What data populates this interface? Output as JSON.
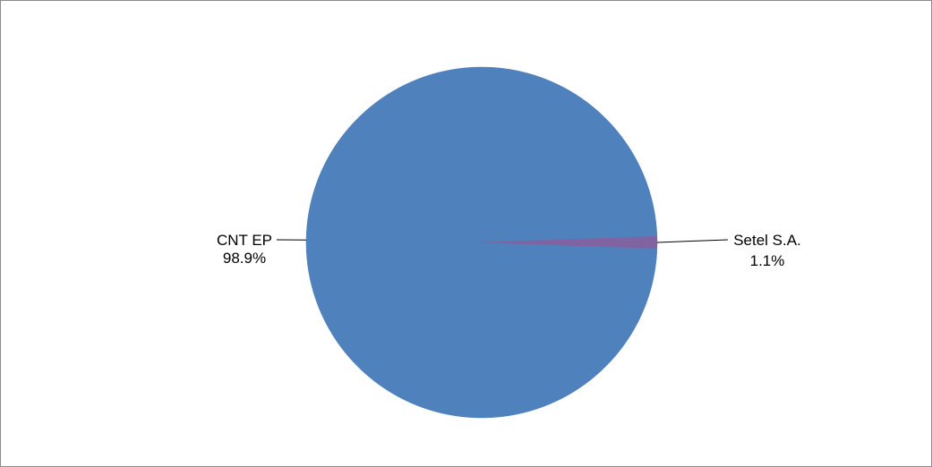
{
  "chart_data": {
    "type": "pie",
    "title": "",
    "legend": "none",
    "slices": [
      {
        "name": "CNT EP",
        "value": 98.9,
        "percent_label": "98.9%",
        "color": "#4F81BD"
      },
      {
        "name": "Setel S.A.",
        "value": 1.1,
        "percent_label": "1.1%",
        "color": "#8064A2"
      }
    ]
  }
}
